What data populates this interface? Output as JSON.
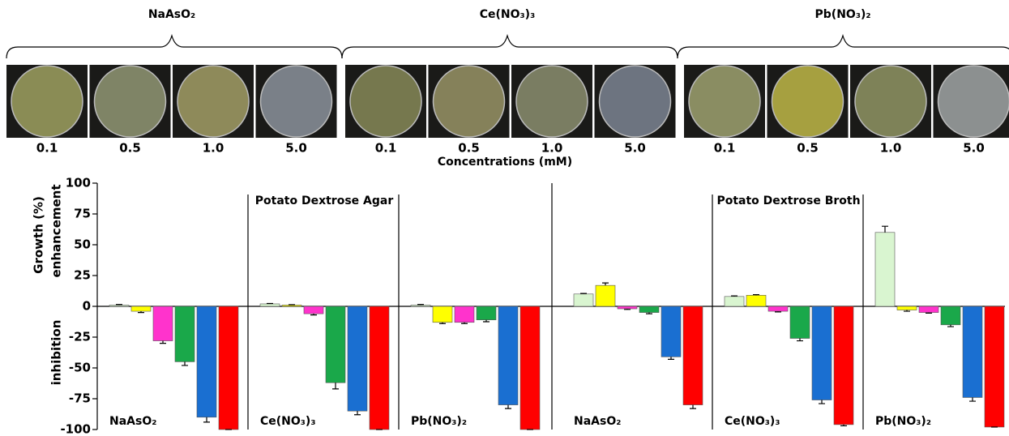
{
  "photos": {
    "groups": [
      {
        "label": "NaAsO₂",
        "concentrations": [
          "0.1",
          "0.5",
          "1.0",
          "5.0"
        ]
      },
      {
        "label": "Ce(NO₃)₃",
        "concentrations": [
          "0.1",
          "0.5",
          "1.0",
          "5.0"
        ]
      },
      {
        "label": "Pb(NO₃)₂",
        "concentrations": [
          "0.1",
          "0.5",
          "1.0",
          "5.0"
        ]
      }
    ],
    "axis_label": "Concentrations (mM)"
  },
  "chart_data": {
    "type": "bar",
    "ylabel": "Growth (%)",
    "ylabel_positive": "enhancement",
    "ylabel_negative": "inhibition",
    "ylim": [
      -100,
      100
    ],
    "yticks": [
      -100,
      -75,
      -50,
      -25,
      0,
      25,
      50,
      75,
      100
    ],
    "colors": [
      "#d9f5d0",
      "#ffff00",
      "#ff33cc",
      "#1aa84a",
      "#1a6fd1",
      "#ff0000"
    ],
    "panels": [
      {
        "title": "Potato Dextrose Agar",
        "groups": [
          {
            "label": "NaAsO₂",
            "values": [
              1,
              -4,
              -28,
              -45,
              -90,
              -100
            ],
            "errors": [
              0.5,
              1,
              2,
              3,
              4,
              0
            ]
          },
          {
            "label": "Ce(NO₃)₃",
            "values": [
              2,
              1,
              -6,
              -62,
              -85,
              -100
            ],
            "errors": [
              0.3,
              0.3,
              1,
              5,
              3,
              0
            ]
          },
          {
            "label": "Pb(NO₃)₂",
            "values": [
              1,
              -13,
              -13,
              -11,
              -80,
              -100
            ],
            "errors": [
              0.5,
              1,
              1,
              1.5,
              3,
              0
            ]
          }
        ]
      },
      {
        "title": "Potato Dextrose Broth",
        "groups": [
          {
            "label": "NaAsO₂",
            "values": [
              10,
              17,
              -2,
              -5,
              -41,
              -80
            ],
            "errors": [
              0.5,
              2,
              0.5,
              1,
              2,
              3
            ]
          },
          {
            "label": "Ce(NO₃)₃",
            "values": [
              8,
              9,
              -4,
              -26,
              -76,
              -96
            ],
            "errors": [
              0.5,
              0.5,
              0.5,
              2,
              3,
              1
            ]
          },
          {
            "label": "Pb(NO₃)₂",
            "values": [
              60,
              -3,
              -5,
              -15,
              -74,
              -98
            ],
            "errors": [
              5,
              1,
              0.5,
              1.5,
              3,
              0
            ]
          }
        ]
      }
    ]
  }
}
